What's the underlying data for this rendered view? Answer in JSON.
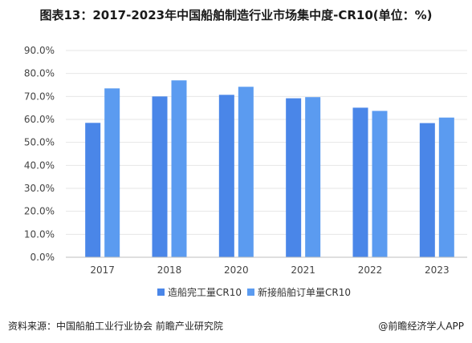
{
  "title": "图表13：2017-2023年中国船舶制造行业市场集中度-CR10(单位：%)",
  "footer": {
    "source": "资料来源：中国船舶工业行业协会 前瞻产业研究院",
    "credit": "@前瞻经济学人APP"
  },
  "colors": {
    "series1": "#4a86e8",
    "series2": "#5b9bf0",
    "grid": "#e6e6e6",
    "axis": "#bfbfbf"
  },
  "chart_data": {
    "type": "bar",
    "title": "图表13：2017-2023年中国船舶制造行业市场集中度-CR10(单位：%)",
    "categories": [
      "2017",
      "2018",
      "2020",
      "2021",
      "2022",
      "2023"
    ],
    "series": [
      {
        "name": "造船完工量CR10",
        "values": [
          58.5,
          70.0,
          70.7,
          69.2,
          65.1,
          58.4
        ]
      },
      {
        "name": "新接船舶订单量CR10",
        "values": [
          73.5,
          77.0,
          74.2,
          69.7,
          63.7,
          60.8
        ]
      }
    ],
    "ylim": [
      0,
      90
    ],
    "yticks": [
      "0.0%",
      "10.0%",
      "20.0%",
      "30.0%",
      "40.0%",
      "50.0%",
      "60.0%",
      "70.0%",
      "80.0%",
      "90.0%"
    ],
    "legend": "bottom",
    "grid": true
  }
}
